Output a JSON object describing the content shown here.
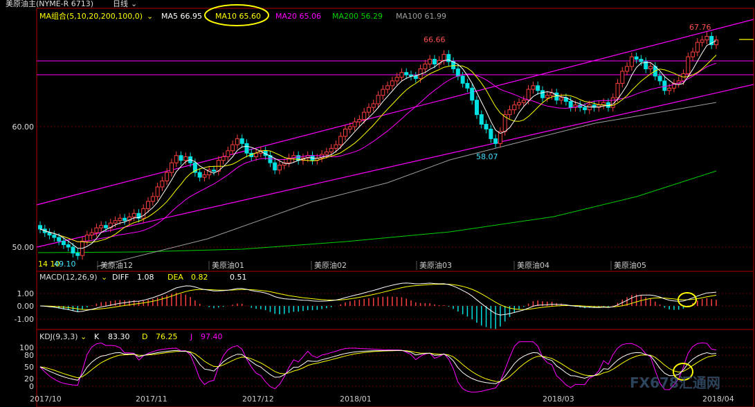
{
  "header": {
    "title": "美原油主(NYME-R 6713)",
    "period": "日线",
    "ma_group": "MA组合(5,10,20,200,100,0)",
    "ma_items": [
      {
        "label": "MA5",
        "value": "66.95",
        "color": "#ffffff"
      },
      {
        "label": "MA10",
        "value": "65.60",
        "color": "#ffff00"
      },
      {
        "label": "MA20",
        "value": "65.06",
        "color": "#ff00ff"
      },
      {
        "label": "MA200",
        "value": "56.29",
        "color": "#00d000"
      },
      {
        "label": "MA100",
        "value": "61.99",
        "color": "#a0a0a0"
      }
    ]
  },
  "price_axis": {
    "ticks": [
      "60.00",
      "50.00"
    ],
    "low_label": "14 10",
    "low_label2": "49.10"
  },
  "annotations": {
    "high1": "66.66",
    "low1": "58.07",
    "high2": "67.76"
  },
  "contract_labels": [
    "美原油12",
    "美原油01",
    "美原油02",
    "美原油03",
    "美原油04",
    "美原油05"
  ],
  "macd": {
    "title": "MACD(12,26,9)",
    "diff_label": "DIFF",
    "diff_value": "1.08",
    "dea_label": "DEA",
    "dea_value": "0.82",
    "macd_value": "0.51",
    "ticks": [
      "1.00",
      "0.00",
      "-1.00"
    ]
  },
  "kdj": {
    "title": "KDJ(9,3,3)",
    "k_label": "K",
    "k_value": "83.30",
    "d_label": "D",
    "d_value": "76.25",
    "j_label": "J",
    "j_value": "97.40",
    "ticks": [
      "100",
      "80",
      "50",
      "20",
      "0"
    ]
  },
  "date_axis": [
    "2017/10",
    "2017/11",
    "2017/12",
    "2018/01",
    "2018/03",
    "2018/04"
  ],
  "watermark": "FX678汇通网",
  "colors": {
    "up": "#ff4040",
    "down": "#00e0e0",
    "frame": "#b00000",
    "channel": "#ff00ff",
    "highlight": "#ffff00"
  },
  "chart_data": {
    "type": "candlestick",
    "price_range": [
      49,
      69
    ],
    "close_series_approx": [
      51.5,
      51.2,
      51.0,
      50.8,
      50.5,
      50.2,
      50.0,
      49.5,
      49.3,
      50.5,
      51.0,
      51.2,
      51.6,
      51.8,
      51.6,
      52.0,
      52.2,
      52.4,
      52.2,
      52.5,
      52.8,
      52.4,
      53.2,
      53.8,
      54.2,
      55.0,
      55.5,
      56.2,
      57.0,
      57.6,
      57.2,
      57.5,
      57.0,
      56.2,
      55.8,
      56.0,
      56.4,
      56.3,
      57.2,
      57.5,
      58.0,
      58.5,
      59.0,
      58.6,
      57.8,
      57.5,
      57.8,
      58.0,
      57.6,
      57.0,
      56.4,
      56.8,
      57.0,
      57.4,
      57.6,
      57.2,
      57.4,
      57.6,
      57.2,
      57.4,
      57.7,
      57.9,
      58.2,
      58.5,
      59.2,
      59.8,
      60.0,
      60.4,
      60.6,
      61.2,
      61.6,
      61.9,
      62.6,
      63.1,
      63.4,
      63.8,
      64.1,
      64.5,
      64.3,
      64.2,
      64.0,
      64.8,
      65.2,
      65.6,
      65.2,
      65.5,
      66.0,
      65.4,
      64.8,
      64.2,
      63.6,
      63.2,
      62.2,
      61.0,
      60.2,
      59.8,
      59.0,
      58.6,
      59.6,
      61.0,
      61.4,
      61.8,
      62.0,
      62.2,
      63.1,
      63.4,
      63.0,
      62.4,
      62.6,
      62.8,
      62.2,
      62.4,
      62.1,
      61.6,
      61.8,
      61.6,
      61.4,
      61.8,
      61.6,
      61.8,
      62.0,
      61.6,
      62.4,
      63.6,
      64.6,
      65.0,
      65.8,
      65.6,
      65.4,
      64.8,
      65.0,
      64.2,
      63.8,
      63.0,
      63.2,
      63.6,
      63.8,
      64.4,
      65.8,
      66.2,
      67.0,
      67.2,
      67.5,
      66.8,
      67.2
    ]
  }
}
